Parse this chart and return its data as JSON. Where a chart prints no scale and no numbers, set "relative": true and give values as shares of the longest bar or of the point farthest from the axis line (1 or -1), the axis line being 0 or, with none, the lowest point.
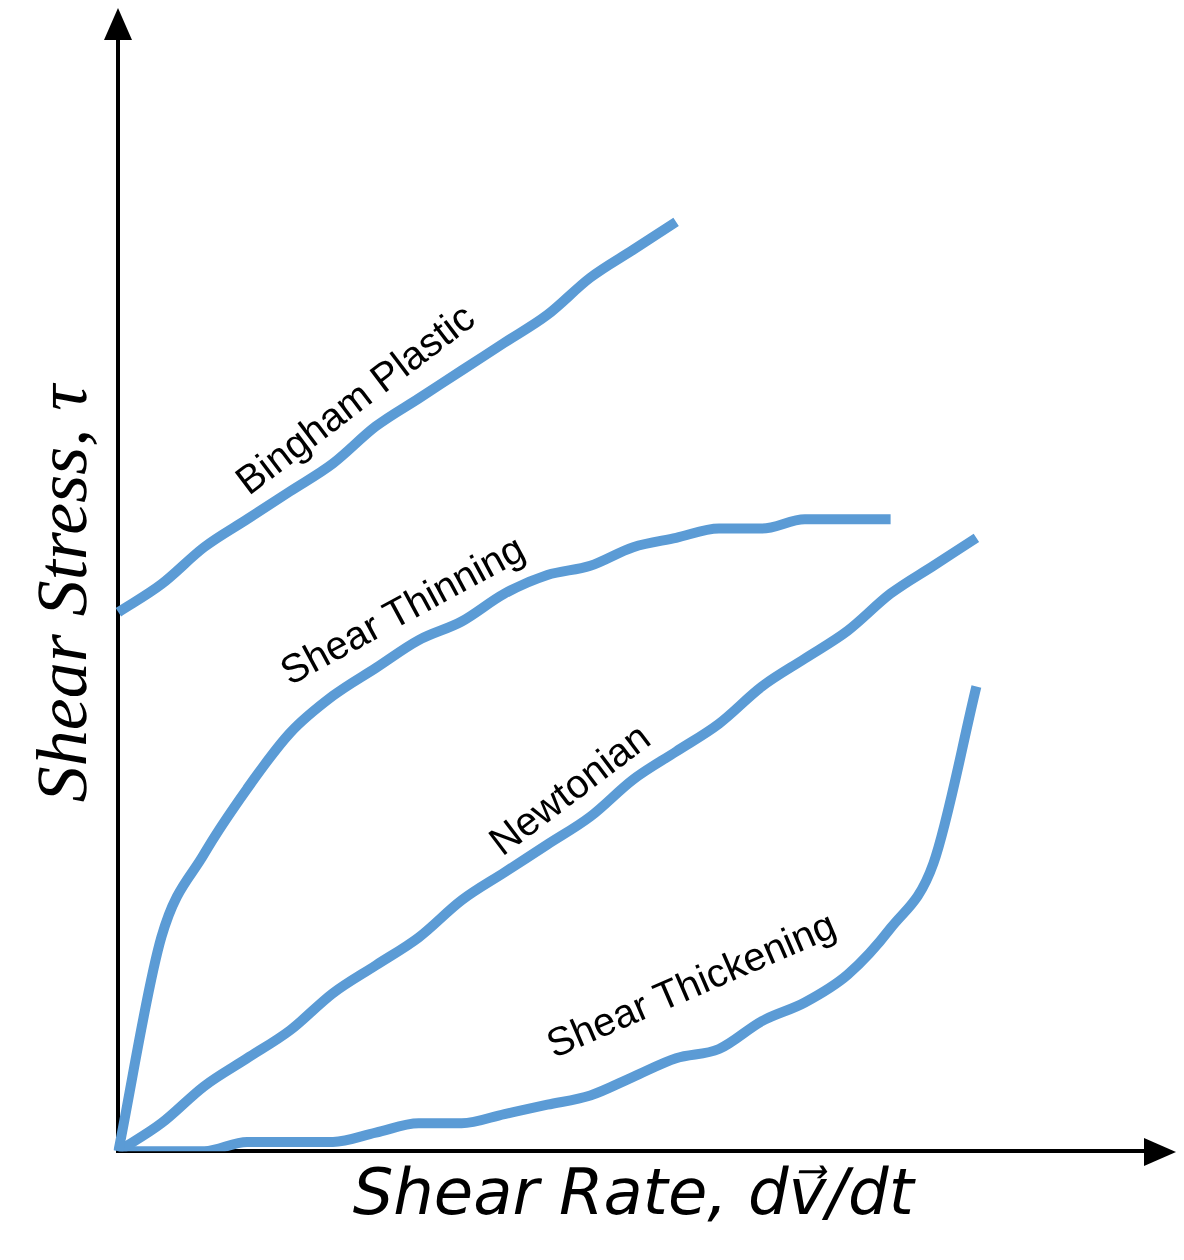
{
  "chart_data": {
    "type": "line",
    "relative": true,
    "xlabel": "Shear Rate, dv⃗/dt",
    "ylabel": "Shear Stress, τ",
    "categories": [
      null,
      null,
      null,
      null,
      null,
      null,
      null,
      null,
      null,
      null,
      null,
      null,
      null,
      null,
      null,
      null,
      null,
      null,
      null,
      null,
      null,
      null,
      null,
      null,
      null
    ],
    "series": [
      {
        "name": "Bingham Plastic",
        "color": "#5b9bd5",
        "values": [
          0.58,
          0.61,
          0.65,
          0.68,
          0.71,
          0.74,
          0.78,
          0.81,
          0.84,
          0.87,
          0.9,
          0.94,
          0.97,
          1,
          null,
          null,
          null,
          null,
          null,
          null,
          null,
          null,
          null,
          null,
          null
        ]
      },
      {
        "name": "Shear Thinning",
        "color": "#5b9bd5",
        "values": [
          0,
          0.23,
          0.32,
          0.39,
          0.45,
          0.49,
          0.52,
          0.55,
          0.57,
          0.6,
          0.62,
          0.63,
          0.65,
          0.66,
          0.67,
          0.67,
          0.68,
          0.68,
          0.68,
          null,
          null,
          null,
          null,
          null,
          null
        ]
      },
      {
        "name": "Newtonian",
        "color": "#5b9bd5",
        "values": [
          0,
          0.03,
          0.07,
          0.1,
          0.13,
          0.17,
          0.2,
          0.23,
          0.27,
          0.3,
          0.33,
          0.36,
          0.4,
          0.43,
          0.46,
          0.5,
          0.53,
          0.56,
          0.6,
          0.63,
          0.66,
          null,
          null,
          null,
          null
        ]
      },
      {
        "name": "Shear Thickening",
        "color": "#5b9bd5",
        "values": [
          0,
          0,
          0,
          0.01,
          0.01,
          0.01,
          0.02,
          0.03,
          0.03,
          0.04,
          0.05,
          0.06,
          0.08,
          0.1,
          0.11,
          0.14,
          0.16,
          0.19,
          0.24,
          0.31,
          0.5,
          null,
          null,
          null,
          null
        ]
      }
    ]
  }
}
